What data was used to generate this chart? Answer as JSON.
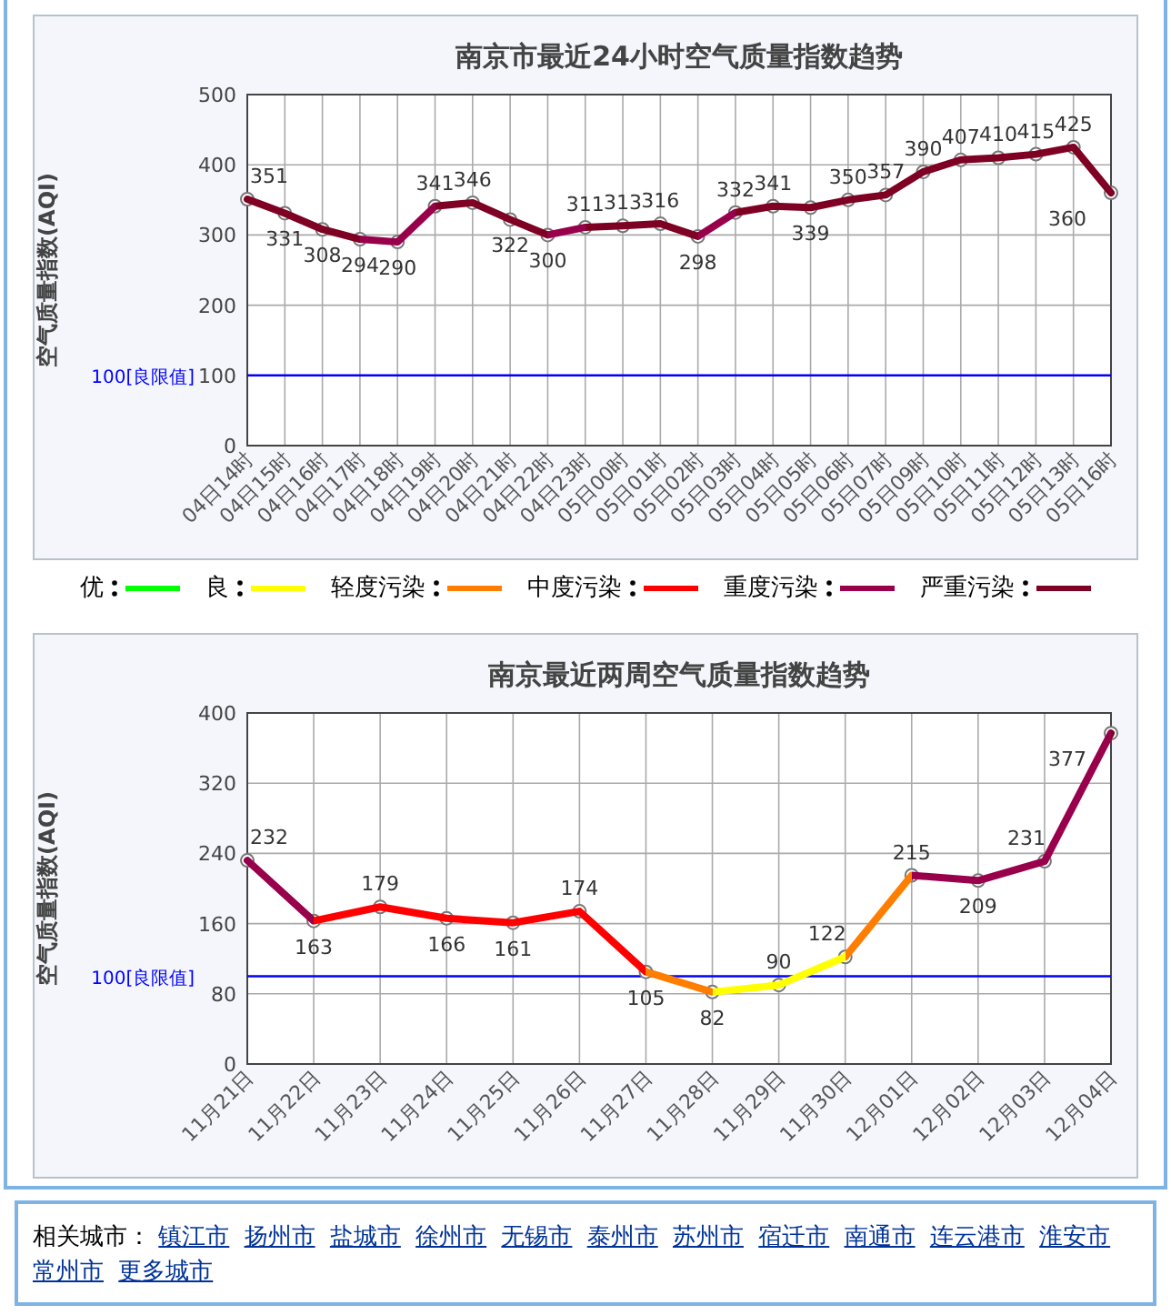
{
  "chart_data": [
    {
      "type": "line",
      "title": "南京市最近24小时空气质量指数趋势",
      "ylabel": "空气质量指数(AQI)",
      "categories": [
        "04日14时",
        "04日15时",
        "04日16时",
        "04日17时",
        "04日18时",
        "04日19时",
        "04日20时",
        "04日21时",
        "04日22时",
        "04日23时",
        "05日00时",
        "05日01时",
        "05日02时",
        "05日03时",
        "05日04时",
        "05日05时",
        "05日06时",
        "05日07时",
        "05日09时",
        "05日10时",
        "05日11时",
        "05日12时",
        "05日13时",
        "05日16时"
      ],
      "series": [
        {
          "values": [
            351,
            331,
            308,
            294,
            290,
            341,
            346,
            322,
            300,
            311,
            313,
            316,
            298,
            332,
            341,
            339,
            350,
            357,
            390,
            407,
            410,
            415,
            425,
            360
          ],
          "colors": [
            "#7e0023",
            "#7e0023",
            "#7e0023",
            "#99004c",
            "#99004c",
            "#7e0023",
            "#7e0023",
            "#7e0023",
            "#99004c",
            "#7e0023",
            "#7e0023",
            "#7e0023",
            "#99004c",
            "#7e0023",
            "#7e0023",
            "#7e0023",
            "#7e0023",
            "#7e0023",
            "#7e0023",
            "#7e0023",
            "#7e0023",
            "#7e0023",
            "#7e0023",
            "#7e0023"
          ]
        }
      ],
      "ylim": [
        0,
        500
      ],
      "yticks": [
        0,
        100,
        200,
        300,
        400,
        500
      ],
      "grid": true,
      "marker": "circle",
      "data_labels": true,
      "ref_lines": [
        {
          "axis": "y",
          "value": 100,
          "label": "100[良限值]",
          "color": "#0000ff"
        }
      ]
    },
    {
      "type": "other",
      "categories": [
        "优",
        "良",
        "轻度污染",
        "中度污染",
        "重度污染",
        "严重污染"
      ],
      "colors": [
        "#00ff00",
        "#ffff00",
        "#ff7e00",
        "#ff0000",
        "#99004c",
        "#7e0023"
      ]
    },
    {
      "type": "line",
      "title": "南京最近两周空气质量指数趋势",
      "ylabel": "空气质量指数(AQI)",
      "categories": [
        "11月21日",
        "11月22日",
        "11月23日",
        "11月24日",
        "11月25日",
        "11月26日",
        "11月27日",
        "11月28日",
        "11月29日",
        "11月30日",
        "12月01日",
        "12月02日",
        "12月03日",
        "12月04日"
      ],
      "series": [
        {
          "values": [
            232,
            163,
            179,
            166,
            161,
            174,
            105,
            82,
            90,
            122,
            215,
            209,
            231,
            377
          ],
          "colors": [
            "#99004c",
            "#ff0000",
            "#ff0000",
            "#ff0000",
            "#ff0000",
            "#ff0000",
            "#ff7e00",
            "#ffff00",
            "#ffff00",
            "#ff7e00",
            "#99004c",
            "#99004c",
            "#99004c",
            "#7e0023"
          ]
        }
      ],
      "ylim": [
        0,
        400
      ],
      "yticks": [
        0,
        80,
        160,
        240,
        320,
        400
      ],
      "grid": true,
      "marker": "circle",
      "data_labels": true,
      "ref_lines": [
        {
          "axis": "y",
          "value": 100,
          "label": "100[良限值]",
          "color": "#0000ff"
        }
      ]
    },
    {
      "type": "other",
      "title": "相关城市：",
      "annotations": [
        "镇江市",
        "扬州市",
        "盐城市",
        "徐州市",
        "无锡市",
        "泰州市",
        "苏州市",
        "宿迁市",
        "南通市",
        "连云港市",
        "淮安市",
        "常州市",
        "更多城市"
      ]
    }
  ]
}
